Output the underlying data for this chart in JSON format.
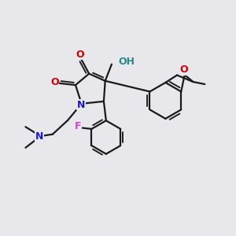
{
  "background_color": "#e8e8ec",
  "figsize": [
    3.0,
    3.0
  ],
  "dpi": 100,
  "bond_color": "#1a1a1a",
  "bond_width": 1.6,
  "colors": {
    "O": "#cc0000",
    "N": "#1a1acc",
    "F": "#cc44cc",
    "OH": "#2a8a8a",
    "C": "#1a1a1a"
  },
  "xlim": [
    0,
    10
  ],
  "ylim": [
    0,
    10
  ]
}
